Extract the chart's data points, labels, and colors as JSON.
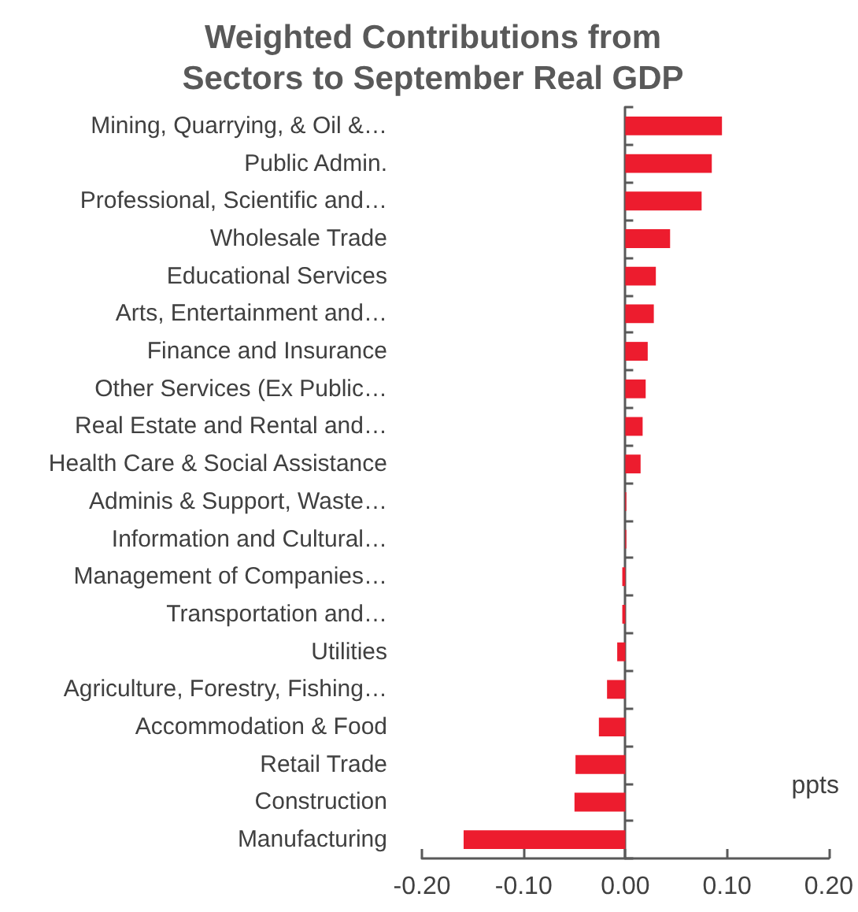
{
  "chart_data": {
    "type": "bar",
    "orientation": "horizontal",
    "title": "Weighted Contributions from\nSectors to September Real GDP",
    "xlabel": "ppts",
    "categories": [
      "Mining, Quarrying, & Oil &…",
      "Public Admin.",
      "Professional, Scientific and…",
      "Wholesale Trade",
      "Educational Services",
      "Arts, Entertainment and…",
      "Finance and Insurance",
      "Other Services (Ex Public…",
      "Real Estate and Rental and…",
      "Health Care & Social Assistance",
      "Adminis & Support, Waste…",
      "Information and Cultural…",
      "Management of Companies…",
      "Transportation and…",
      "Utilities",
      "Agriculture, Forestry, Fishing…",
      "Accommodation & Food",
      "Retail Trade",
      "Construction",
      "Manufacturing"
    ],
    "values": [
      0.095,
      0.085,
      0.075,
      0.044,
      0.03,
      0.028,
      0.022,
      0.02,
      0.017,
      0.015,
      0.001,
      0.001,
      -0.003,
      -0.003,
      -0.008,
      -0.018,
      -0.026,
      -0.049,
      -0.05,
      -0.159
    ],
    "color": "#ed1c2e",
    "xlim": [
      -0.2,
      0.2
    ],
    "xticks": [
      {
        "value": -0.2,
        "label": "-0.20"
      },
      {
        "value": -0.1,
        "label": "-0.10"
      },
      {
        "value": 0,
        "label": "0.00"
      },
      {
        "value": 0.1,
        "label": "0.10"
      },
      {
        "value": 0.2,
        "label": "0.20"
      }
    ]
  }
}
